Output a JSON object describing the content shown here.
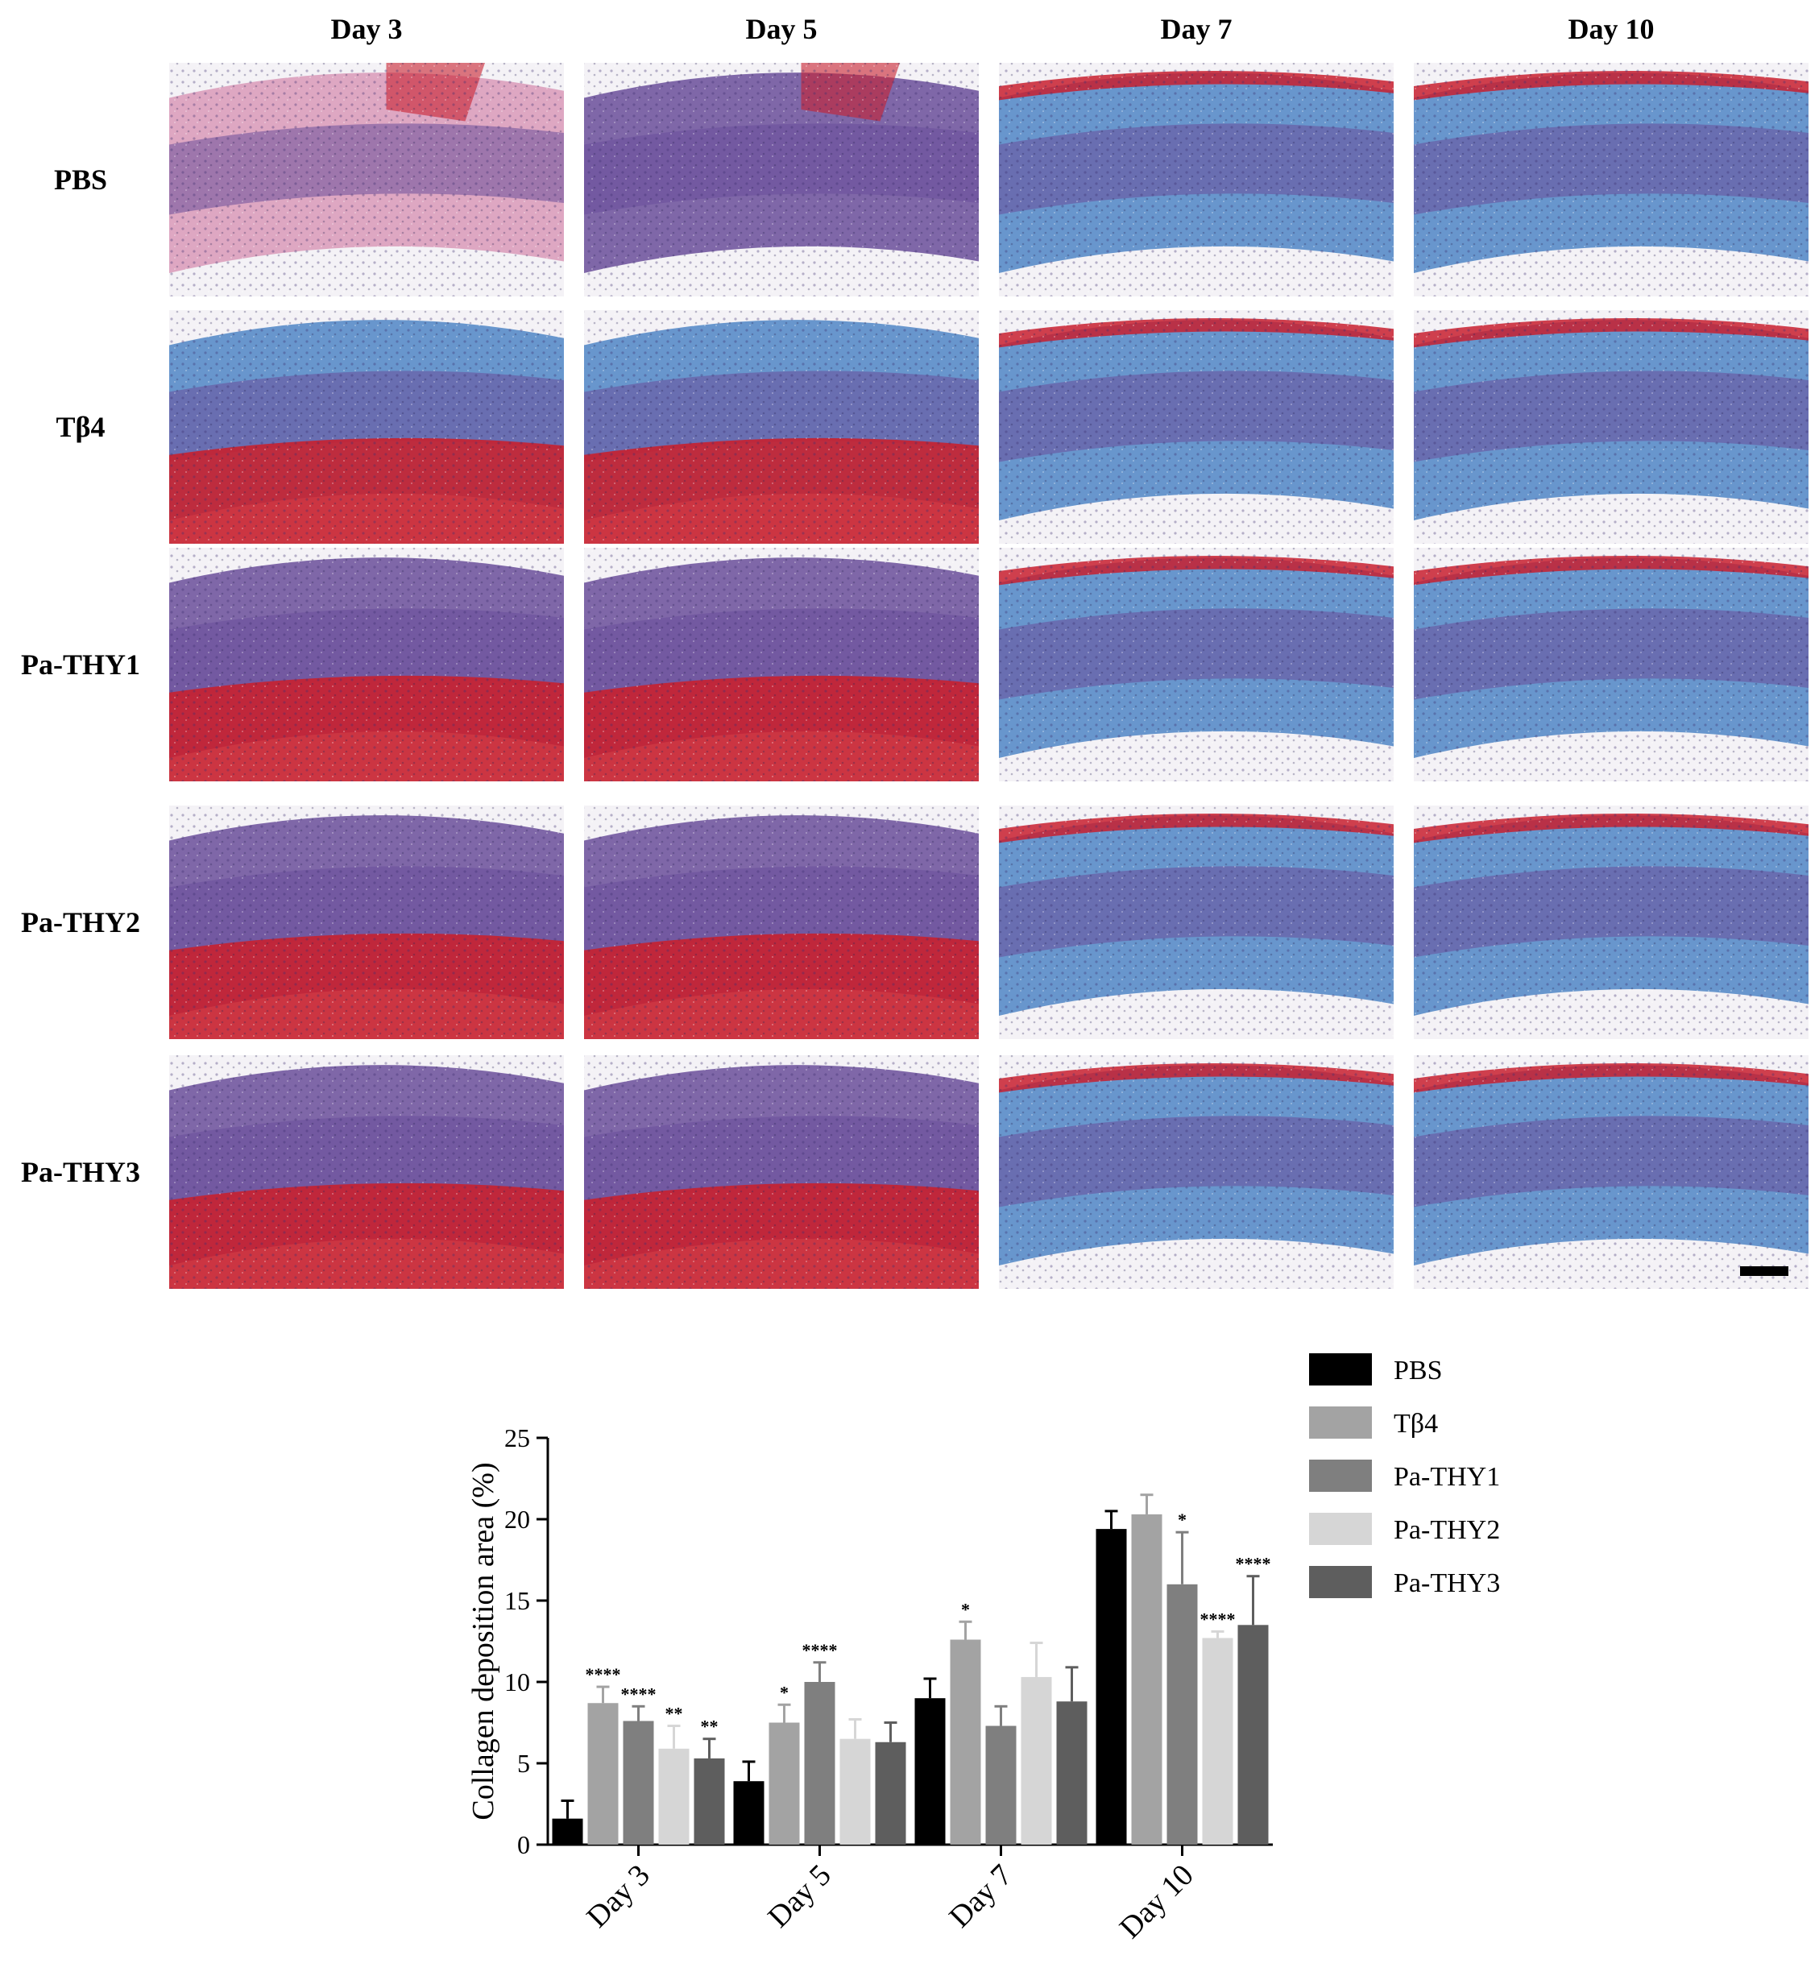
{
  "figure": {
    "columns": [
      "Day 3",
      "Day 5",
      "Day 7",
      "Day 10"
    ],
    "rows": [
      "PBS",
      "Tβ4",
      "Pa-THY1",
      "Pa-THY2",
      "Pa-THY3"
    ],
    "stain_colors": {
      "background": "#f4f2f6",
      "collagen_blue": "#4f86c6",
      "muscle_red": "#c8202f",
      "cell_purple": "#6a4f9a",
      "dermis_pink": "#d99ab8"
    }
  },
  "chart_data": {
    "type": "bar",
    "title": "",
    "xlabel": "",
    "ylabel": "Collagen deposition area (%)",
    "ylim": [
      0,
      25
    ],
    "yticks": [
      0,
      5,
      10,
      15,
      20,
      25
    ],
    "categories": [
      "Day 3",
      "Day 5",
      "Day 7",
      "Day 10"
    ],
    "legend_position": "top-right",
    "series": [
      {
        "name": "PBS",
        "color": "#000000",
        "values": [
          1.6,
          3.9,
          9.0,
          19.4
        ],
        "errors": [
          1.1,
          1.2,
          1.2,
          1.1
        ],
        "significance": [
          "",
          "",
          "",
          ""
        ]
      },
      {
        "name": "Tβ4",
        "color": "#a3a3a3",
        "values": [
          8.7,
          7.5,
          12.6,
          20.3
        ],
        "errors": [
          1.0,
          1.1,
          1.1,
          1.2
        ],
        "significance": [
          "****",
          "*",
          "*",
          ""
        ]
      },
      {
        "name": "Pa-THY1",
        "color": "#7f7f7f",
        "values": [
          7.6,
          10.0,
          7.3,
          16.0
        ],
        "errors": [
          0.9,
          1.2,
          1.2,
          3.2
        ],
        "significance": [
          "****",
          "****",
          "",
          "*"
        ]
      },
      {
        "name": "Pa-THY2",
        "color": "#d6d6d6",
        "values": [
          5.9,
          6.5,
          10.3,
          12.7
        ],
        "errors": [
          1.4,
          1.2,
          2.1,
          0.4
        ],
        "significance": [
          "**",
          "",
          "",
          "****"
        ]
      },
      {
        "name": "Pa-THY3",
        "color": "#5e5e5e",
        "values": [
          5.3,
          6.3,
          8.8,
          13.5
        ],
        "errors": [
          1.2,
          1.2,
          2.1,
          3.0
        ],
        "significance": [
          "**",
          "",
          "",
          "****"
        ]
      }
    ]
  }
}
